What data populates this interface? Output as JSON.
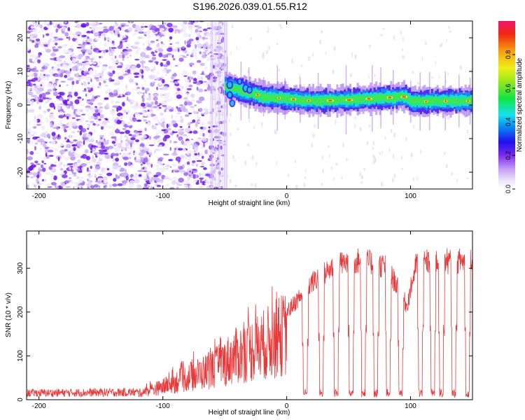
{
  "chart_data": [
    {
      "type": "heatmap",
      "title": "S196.2026.039.01.55.R12",
      "xlabel": "Height of straight line (km)",
      "ylabel": "Frequency (Hz)",
      "xlim": [
        -210,
        150
      ],
      "ylim": [
        -25,
        25
      ],
      "xticks": [
        -200,
        -100,
        0,
        100
      ],
      "yticks": [
        -20,
        -10,
        0,
        10,
        20
      ],
      "colorbar": {
        "label": "Normalized spectral amplitude",
        "range": [
          0,
          1
        ],
        "ticks": [
          0,
          0.2,
          0.4,
          0.6,
          0.8
        ],
        "tick_labels": [
          "0.0",
          "0.2",
          "0.4",
          "0.6",
          "0.8"
        ],
        "colormap": "rainbow"
      },
      "noise_region_x": [
        -210,
        -50
      ],
      "signal_region_x": [
        -50,
        150
      ],
      "signal_center_freq": [
        {
          "x": -48,
          "y": 5.5
        },
        {
          "x": -35,
          "y": 4
        },
        {
          "x": -20,
          "y": 2.5
        },
        {
          "x": 0,
          "y": 1.8
        },
        {
          "x": 20,
          "y": 1.2
        },
        {
          "x": 50,
          "y": 1.5
        },
        {
          "x": 80,
          "y": 2.2
        },
        {
          "x": 95,
          "y": 2.5
        },
        {
          "x": 100,
          "y": 1
        },
        {
          "x": 120,
          "y": 1.2
        },
        {
          "x": 150,
          "y": 1.2
        }
      ]
    },
    {
      "type": "line",
      "series": [
        {
          "name": "SNR",
          "color": "#e8393a"
        }
      ],
      "xlabel": "Height of straight line (km)",
      "ylabel": "SNR (10 * v/v)",
      "xlim": [
        -210,
        150
      ],
      "ylim": [
        0,
        385
      ],
      "xticks": [
        -200,
        -100,
        0,
        100
      ],
      "yticks": [
        0,
        100,
        200,
        300
      ],
      "envelope": [
        {
          "x": -210,
          "y": 18
        },
        {
          "x": -120,
          "y": 20
        },
        {
          "x": -100,
          "y": 40
        },
        {
          "x": -80,
          "y": 70
        },
        {
          "x": -60,
          "y": 95
        },
        {
          "x": -40,
          "y": 140
        },
        {
          "x": -20,
          "y": 170
        },
        {
          "x": 0,
          "y": 210
        },
        {
          "x": 20,
          "y": 280
        },
        {
          "x": 40,
          "y": 325
        },
        {
          "x": 60,
          "y": 335
        },
        {
          "x": 80,
          "y": 320
        },
        {
          "x": 90,
          "y": 270
        },
        {
          "x": 97,
          "y": 225
        },
        {
          "x": 105,
          "y": 330
        },
        {
          "x": 150,
          "y": 335
        }
      ],
      "dropouts_x": [
        15,
        28,
        40,
        52,
        62,
        72,
        82,
        92,
        108,
        118,
        125,
        135,
        146
      ]
    }
  ]
}
